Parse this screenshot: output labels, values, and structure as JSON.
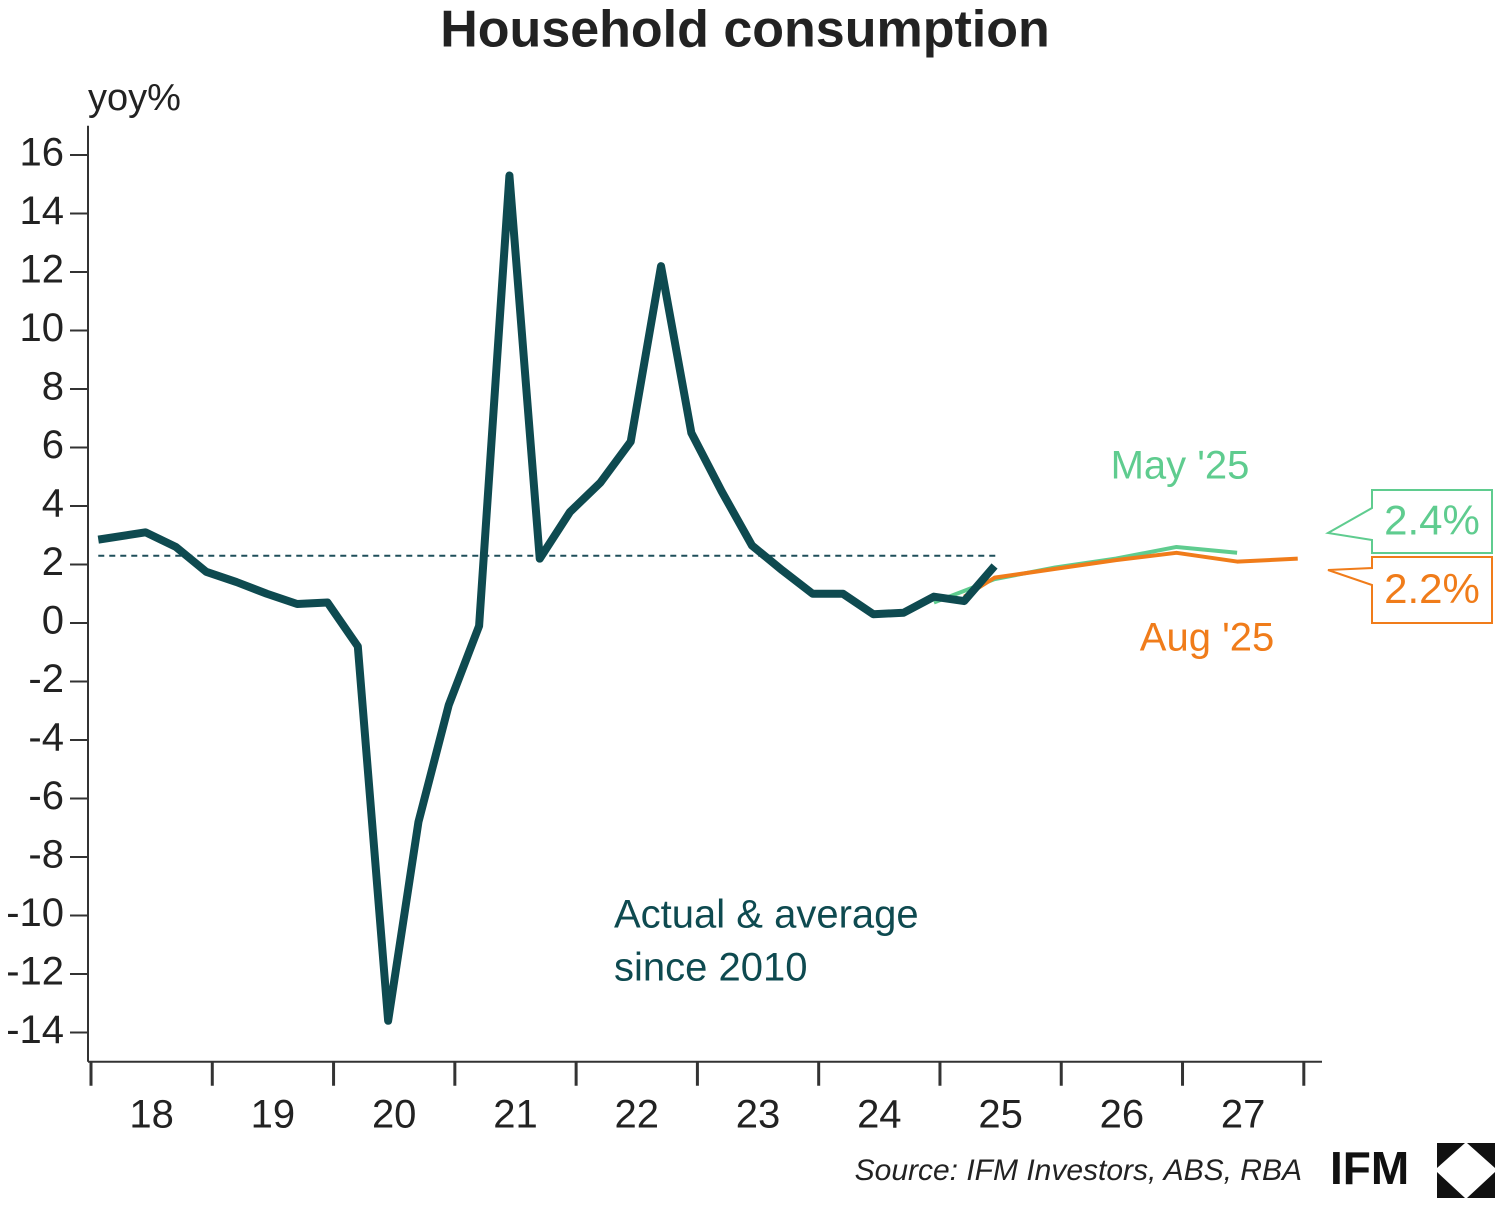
{
  "chart_data": {
    "type": "line",
    "title": "Household consumption",
    "y_label": "yoy%",
    "ylim": [
      -15,
      17
    ],
    "yticks": [
      -14,
      -12,
      -10,
      -8,
      -6,
      -4,
      -2,
      0,
      2,
      4,
      6,
      8,
      10,
      12,
      14,
      16
    ],
    "xlim": [
      2018,
      2028.15
    ],
    "xticks": [
      2018,
      2019,
      2020,
      2021,
      2022,
      2023,
      2024,
      2025,
      2026,
      2027,
      2028
    ],
    "x_labels": [
      {
        "value": 2018.5,
        "label": "18"
      },
      {
        "value": 2019.5,
        "label": "19"
      },
      {
        "value": 2020.5,
        "label": "20"
      },
      {
        "value": 2021.5,
        "label": "21"
      },
      {
        "value": 2022.5,
        "label": "22"
      },
      {
        "value": 2023.5,
        "label": "23"
      },
      {
        "value": 2024.5,
        "label": "24"
      },
      {
        "value": 2025.5,
        "label": "25"
      },
      {
        "value": 2026.5,
        "label": "26"
      },
      {
        "value": 2027.5,
        "label": "27"
      }
    ],
    "series": [
      {
        "name": "Actual",
        "color": "#0e4a50",
        "width": 8,
        "x": [
          2018.06,
          2018.45,
          2018.7,
          2018.95,
          2019.2,
          2019.45,
          2019.7,
          2019.95,
          2020.2,
          2020.45,
          2020.7,
          2020.95,
          2021.2,
          2021.45,
          2021.7,
          2021.95,
          2022.2,
          2022.45,
          2022.7,
          2022.95,
          2023.2,
          2023.45,
          2023.7,
          2023.95,
          2024.2,
          2024.45,
          2024.7,
          2024.95,
          2025.2,
          2025.45
        ],
        "values": [
          2.85,
          3.1,
          2.6,
          1.75,
          1.4,
          1.0,
          0.65,
          0.7,
          -0.8,
          -13.6,
          -6.8,
          -2.8,
          -0.1,
          15.3,
          2.2,
          3.8,
          4.8,
          6.2,
          12.2,
          6.5,
          4.5,
          2.65,
          1.8,
          1.0,
          1.0,
          0.3,
          0.35,
          0.9,
          0.75,
          1.95
        ]
      },
      {
        "name": "May '25",
        "color": "#5fcc8f",
        "width": 4,
        "x": [
          2024.95,
          2025.2,
          2025.45,
          2025.95,
          2026.45,
          2026.95,
          2027.45
        ],
        "values": [
          0.7,
          1.1,
          1.5,
          1.9,
          2.2,
          2.6,
          2.4
        ]
      },
      {
        "name": "Aug '25",
        "color": "#f07c1a",
        "width": 4,
        "x": [
          2025.2,
          2025.45,
          2025.95,
          2026.45,
          2026.95,
          2027.45,
          2027.95
        ],
        "values": [
          0.9,
          1.55,
          1.85,
          2.15,
          2.4,
          2.1,
          2.2
        ]
      }
    ],
    "average": {
      "value": 2.3,
      "x": [
        2018.06,
        2025.47
      ],
      "color": "#1f4f5a"
    },
    "annotation": [
      "Actual & average",
      "since 2010"
    ],
    "callouts": [
      {
        "label": "2.4%",
        "color": "#5fcc8f"
      },
      {
        "label": "2.2%",
        "color": "#f07c1a"
      }
    ],
    "source": "Source: IFM Investors, ABS, RBA",
    "logo": "IFM"
  }
}
